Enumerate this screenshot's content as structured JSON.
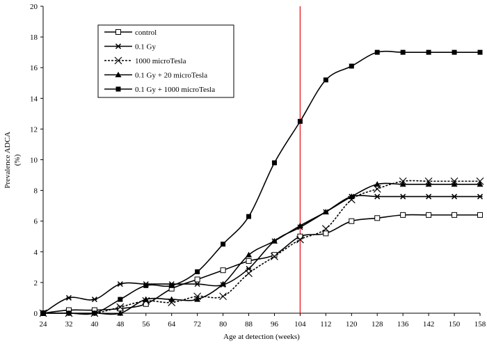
{
  "chart_data": {
    "type": "line",
    "xlabel": "Age at detection (weeks)",
    "ylabel": "Prevalence ADCA (%)",
    "ylabel_lines": [
      "Prevalence ADCA",
      "(%)"
    ],
    "categories": [
      "24",
      "32",
      "40",
      "48",
      "56",
      "64",
      "72",
      "80",
      "88",
      "96",
      "104",
      "112",
      "120",
      "128",
      "136",
      "142",
      "150",
      "158"
    ],
    "ylim": [
      0,
      20
    ],
    "yticks": [
      0,
      2,
      4,
      6,
      8,
      10,
      12,
      14,
      16,
      18,
      20
    ],
    "grid": false,
    "legend": "top-left",
    "reference_line": {
      "x": "104",
      "color": "#e8141c"
    },
    "series": [
      {
        "name": "control",
        "marker": "open-square",
        "dash": false,
        "values": [
          0,
          0.2,
          0.2,
          0.3,
          0.6,
          1.6,
          2.2,
          2.8,
          3.4,
          3.8,
          5.0,
          5.2,
          6.0,
          6.2,
          6.4,
          6.4,
          6.4,
          6.4
        ]
      },
      {
        "name": "0.1 Gy",
        "marker": "star",
        "dash": false,
        "values": [
          0,
          1.0,
          0.9,
          1.9,
          1.9,
          1.9,
          1.9,
          1.85,
          2.9,
          4.7,
          5.6,
          6.6,
          7.6,
          7.6,
          7.6,
          7.6,
          7.6,
          7.6
        ]
      },
      {
        "name": "1000 microTesla",
        "marker": "cross",
        "dash": true,
        "values": [
          0,
          0,
          0,
          0.4,
          0.8,
          0.7,
          1.1,
          1.1,
          2.6,
          3.7,
          4.8,
          5.5,
          7.4,
          8.1,
          8.6,
          8.6,
          8.6,
          8.6
        ]
      },
      {
        "name": "0.1 Gy + 20 microTesla",
        "marker": "triangle",
        "dash": false,
        "values": [
          0,
          0,
          0,
          0,
          0.9,
          0.9,
          0.9,
          1.9,
          3.8,
          4.7,
          5.7,
          6.6,
          7.6,
          8.4,
          8.4,
          8.4,
          8.4,
          8.4
        ]
      },
      {
        "name": "0.1 Gy + 1000 microTesla",
        "marker": "filled-square",
        "dash": false,
        "values": [
          0,
          0,
          0,
          0.9,
          1.8,
          1.8,
          2.7,
          4.5,
          6.3,
          9.8,
          12.5,
          15.2,
          16.1,
          17,
          17,
          17,
          17,
          17
        ]
      }
    ]
  }
}
